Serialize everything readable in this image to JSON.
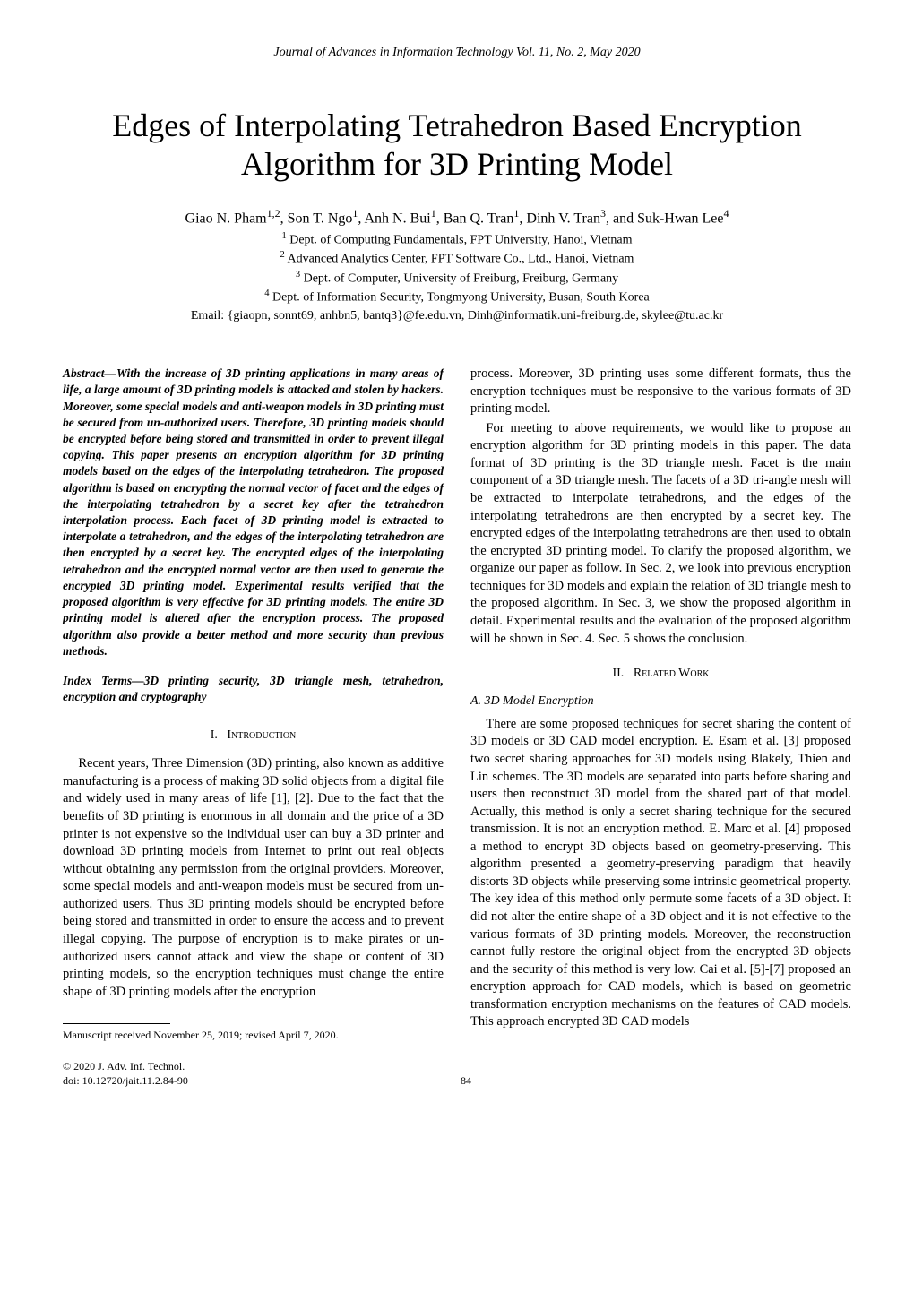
{
  "journal_header": "Journal of Advances in Information Technology Vol. 11, No. 2, May 2020",
  "title": "Edges of Interpolating Tetrahedron Based Encryption Algorithm for 3D Printing Model",
  "authors_html": "Giao N. Pham<sup>1,2</sup>, Son T. Ngo<sup>1</sup>, Anh N. Bui<sup>1</sup>, Ban Q. Tran<sup>1</sup>, Dinh V. Tran<sup>3</sup>, and Suk-Hwan Lee<sup>4</sup>",
  "affiliations": [
    "<sup>1</sup> Dept. of Computing Fundamentals, FPT University, Hanoi, Vietnam",
    "<sup>2</sup> Advanced Analytics Center, FPT Software Co., Ltd., Hanoi, Vietnam",
    "<sup>3</sup> Dept. of Computer, University of Freiburg, Freiburg, Germany",
    "<sup>4</sup> Dept. of Information Security, Tongmyong University, Busan, South Korea"
  ],
  "emails": "Email: {giaopn, sonnt69, anhbn5, bantq3}@fe.edu.vn, Dinh@informatik.uni-freiburg.de, skylee@tu.ac.kr",
  "abstract_label": "Abstract",
  "abstract_text": "—With the increase of 3D printing applications in many areas of life, a large amount of 3D printing models is attacked and stolen by hackers. Moreover, some special models and anti-weapon models in 3D printing must be secured from un-authorized users. Therefore, 3D printing models should be encrypted before being stored and transmitted in order to prevent illegal copying. This paper presents an encryption algorithm for 3D printing models based on the edges of the interpolating tetrahedron. The proposed algorithm is based on encrypting the normal vector of facet and the edges of the interpolating tetrahedron by a secret key after the tetrahedron interpolation process. Each facet of 3D printing model is extracted to interpolate a tetrahedron, and the edges of the interpolating tetrahedron are then encrypted by a secret key. The encrypted edges of the interpolating tetrahedron and the encrypted normal vector are then used to generate the encrypted 3D printing model. Experimental results verified that the proposed algorithm is very effective for 3D printing models. The entire 3D printing model is altered after the encryption process. The proposed algorithm also provide a better method and more security than previous methods.",
  "index_terms_label": "Index Terms",
  "index_terms_text": "—3D printing security, 3D triangle mesh, tetrahedron, encryption and cryptography",
  "sections": {
    "intro": {
      "num": "I.",
      "title": "Introduction"
    },
    "related": {
      "num": "II.",
      "title": "Related Work"
    }
  },
  "subsections": {
    "s2a": "A. 3D Model Encryption"
  },
  "body": {
    "intro_p1": "Recent years, Three Dimension (3D) printing, also known as additive manufacturing is a process of making 3D solid objects from a digital file and widely used in many areas of life [1], [2]. Due to the fact that the benefits of 3D printing is enormous in all domain and the price of a 3D printer is not expensive so the individual user can buy a 3D printer and download 3D printing models from Internet to print out real objects without obtaining any permission from the original providers. Moreover, some special models and anti-weapon models must be secured from un-authorized users. Thus 3D printing models should be encrypted before being stored and transmitted in order to ensure the access and to prevent illegal copying. The purpose of encryption is to make pirates or un-authorized users cannot attack and view the shape or content of 3D printing models, so the encryption techniques must change the entire shape of 3D printing models after the encryption",
    "col2_p1": "process. Moreover, 3D printing uses some different formats, thus the encryption techniques must be responsive to the various formats of 3D printing model.",
    "col2_p2": "For meeting to above requirements, we would like to propose an encryption algorithm for 3D printing models in this paper. The data format of 3D printing is the 3D triangle mesh. Facet is the main component of a 3D triangle mesh. The facets of a 3D tri-angle mesh will be extracted to interpolate tetrahedrons, and the edges of the interpolating tetrahedrons are then encrypted by a secret key. The encrypted edges of the interpolating tetrahedrons are then used to obtain the encrypted 3D printing model. To clarify the proposed algorithm, we organize our paper as follow. In Sec. 2, we look into previous encryption techniques for 3D models and explain the relation of 3D triangle mesh to the proposed algorithm. In Sec. 3, we show the proposed algorithm in detail. Experimental results and the evaluation of the proposed algorithm will be shown in Sec. 4. Sec. 5 shows the conclusion.",
    "s2a_p1": "There are some proposed techniques for secret sharing the content of 3D models or 3D CAD model encryption. E. Esam et al. [3] proposed two secret sharing approaches for 3D models using Blakely, Thien and Lin schemes. The 3D models are separated into parts before sharing and users then reconstruct 3D model from the shared part of that model. Actually, this method is only a secret sharing technique for the secured transmission. It is not an encryption method. E. Marc et al. [4] proposed a method to encrypt 3D objects based on geometry-preserving. This algorithm presented a geometry-preserving paradigm that heavily distorts 3D objects while preserving some intrinsic geometrical property. The key idea of this method only permute some facets of a 3D object. It did not alter the entire shape of a 3D object and it is not effective to the various formats of 3D printing models. Moreover, the reconstruction cannot fully restore the original object from the encrypted 3D objects and the security of this method is very low. Cai et al. [5]-[7] proposed an encryption approach for CAD models, which is based on geometric transformation encryption mechanisms on the features of CAD models. This approach encrypted 3D CAD models"
  },
  "footnote": "Manuscript received November 25, 2019; revised April 7, 2020.",
  "footer": {
    "copyright": "© 2020 J. Adv. Inf. Technol.",
    "doi": "doi: 10.12720/jait.11.2.84-90",
    "page": "84"
  }
}
